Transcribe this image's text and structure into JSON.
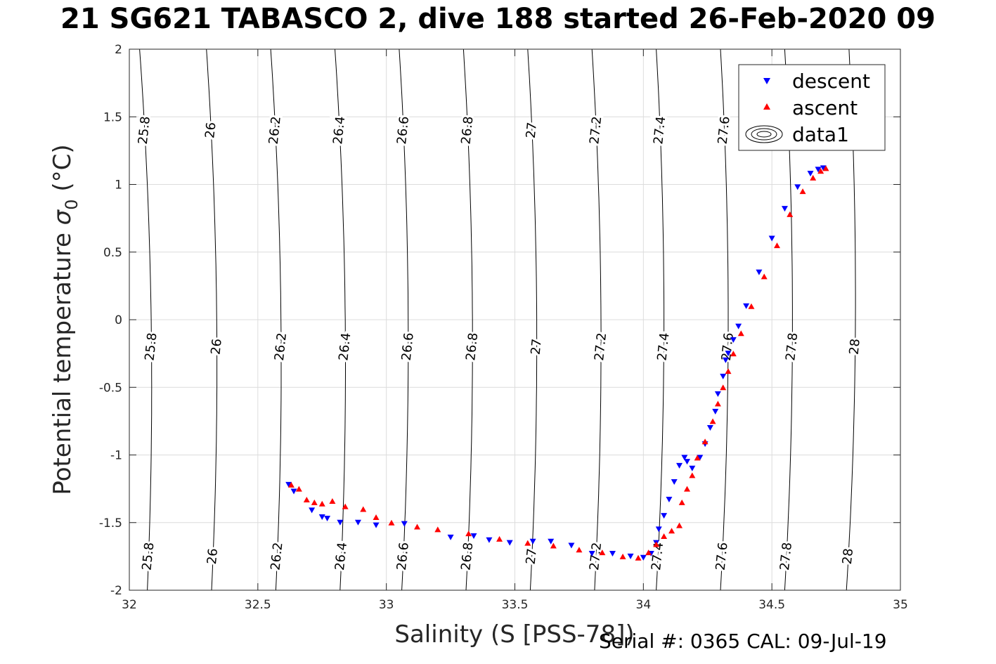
{
  "title": "21 SG621 TABASCO 2, dive 188 started 26-Feb-2020 09",
  "footer": "Serial #: 0365  CAL: 09-Jul-19",
  "chart_data": {
    "type": "scatter",
    "xlabel": "Salinity (S [PSS-78])",
    "ylabel_main": "Potential temperature ",
    "ylabel_symbol": "σ",
    "ylabel_sub": "0",
    "ylabel_unit": " (°C)",
    "xlim": [
      32,
      35
    ],
    "ylim": [
      -2,
      2
    ],
    "xticks": [
      32,
      32.5,
      33,
      33.5,
      34,
      34.5,
      35
    ],
    "xtick_labels": [
      "32",
      "32.5",
      "33",
      "33.5",
      "34",
      "34.5",
      "35"
    ],
    "yticks": [
      -2,
      -1.5,
      -1,
      -0.5,
      0,
      0.5,
      1,
      1.5,
      2
    ],
    "ytick_labels": [
      "-2",
      "-1.5",
      "-1",
      "-0.5",
      "0",
      "0.5",
      "1",
      "1.5",
      "2"
    ],
    "grid": true,
    "legend_position": "top-right",
    "legend": [
      "descent",
      "ascent",
      "data1"
    ],
    "density_contours": {
      "levels": [
        25.8,
        26,
        26.2,
        26.4,
        26.6,
        26.8,
        27,
        27.2,
        27.4,
        27.6,
        27.8,
        28
      ],
      "level_labels": [
        "25.8",
        "26",
        "26.2",
        "26.4",
        "26.6",
        "26.8",
        "27",
        "27.2",
        "27.4",
        "27.6",
        "27.8",
        "28"
      ],
      "salinity_at_temp_minus2": [
        32.07,
        32.32,
        32.57,
        32.82,
        33.06,
        33.31,
        33.56,
        33.81,
        34.05,
        34.3,
        34.55,
        34.79
      ],
      "salinity_at_temp_2": [
        32.04,
        32.3,
        32.55,
        32.8,
        33.05,
        33.3,
        33.55,
        33.8,
        34.05,
        34.3,
        34.55,
        34.8
      ],
      "label_temps": [
        -1.75,
        -0.2,
        1.4
      ]
    },
    "series": [
      {
        "name": "descent",
        "color": "#0000ff",
        "marker": "triangle-down",
        "x": [
          32.62,
          32.64,
          32.71,
          32.75,
          32.77,
          32.82,
          32.89,
          32.96,
          33.07,
          33.25,
          33.34,
          33.4,
          33.48,
          33.57,
          33.64,
          33.72,
          33.8,
          33.88,
          33.95,
          34.0,
          34.03,
          34.05,
          34.06,
          34.08,
          34.1,
          34.12,
          34.14,
          34.16,
          34.17,
          34.19,
          34.22,
          34.24,
          34.26,
          34.28,
          34.29,
          34.31,
          34.32,
          34.33,
          34.35,
          34.37,
          34.4,
          34.45,
          34.5,
          34.55,
          34.6,
          34.65,
          34.68,
          34.7
        ],
        "y": [
          -1.22,
          -1.27,
          -1.41,
          -1.46,
          -1.47,
          -1.5,
          -1.5,
          -1.52,
          -1.51,
          -1.61,
          -1.6,
          -1.63,
          -1.65,
          -1.64,
          -1.64,
          -1.67,
          -1.73,
          -1.73,
          -1.75,
          -1.76,
          -1.73,
          -1.65,
          -1.55,
          -1.45,
          -1.33,
          -1.2,
          -1.08,
          -1.02,
          -1.05,
          -1.1,
          -1.02,
          -0.92,
          -0.8,
          -0.68,
          -0.55,
          -0.42,
          -0.3,
          -0.25,
          -0.15,
          -0.05,
          0.1,
          0.35,
          0.6,
          0.82,
          0.98,
          1.08,
          1.11,
          1.12
        ]
      },
      {
        "name": "ascent",
        "color": "#ff0000",
        "marker": "triangle-up",
        "x": [
          32.63,
          32.66,
          32.69,
          32.72,
          32.75,
          32.79,
          32.84,
          32.91,
          32.96,
          33.02,
          33.12,
          33.2,
          33.32,
          33.44,
          33.55,
          33.65,
          33.75,
          33.84,
          33.92,
          33.98,
          34.02,
          34.05,
          34.08,
          34.11,
          34.14,
          34.15,
          34.17,
          34.19,
          34.21,
          34.24,
          34.27,
          34.29,
          34.31,
          34.33,
          34.35,
          34.38,
          34.42,
          34.47,
          34.52,
          34.57,
          34.62,
          34.66,
          34.69,
          34.71
        ],
        "y": [
          -1.22,
          -1.25,
          -1.33,
          -1.35,
          -1.36,
          -1.34,
          -1.38,
          -1.4,
          -1.46,
          -1.5,
          -1.53,
          -1.55,
          -1.58,
          -1.62,
          -1.65,
          -1.67,
          -1.7,
          -1.72,
          -1.75,
          -1.76,
          -1.72,
          -1.66,
          -1.6,
          -1.56,
          -1.52,
          -1.35,
          -1.25,
          -1.15,
          -1.02,
          -0.9,
          -0.75,
          -0.62,
          -0.5,
          -0.38,
          -0.25,
          -0.1,
          0.1,
          0.32,
          0.55,
          0.78,
          0.95,
          1.05,
          1.1,
          1.12
        ]
      }
    ]
  }
}
